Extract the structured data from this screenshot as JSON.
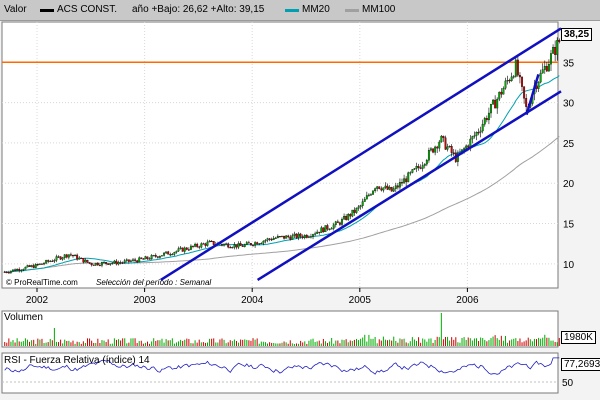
{
  "header": {
    "label": "Valor",
    "series_name": "ACS CONST.",
    "stats": "año +Bajo: 26,62 +Alto: 39,15",
    "ma20_label": "MM20",
    "ma100_label": "MM100"
  },
  "watermark": {
    "brand": "© ProRealTime.com",
    "period": "Selección del período : Semanal"
  },
  "panels": {
    "volume_title": "Volumen",
    "volume_value": "1980K",
    "rsi_title": "RSI - Fuerza Relativa (índice) 14",
    "rsi_value": "77,2693",
    "rsi_level": "50"
  },
  "colors": {
    "up": "#00aa00",
    "down": "#cc0000",
    "ma20": "#00a0b0",
    "ma100": "#a0a0a0",
    "trend": "#1010c0",
    "resistance": "#ff6a00",
    "panel_bg": "#ffffff"
  },
  "chart_data": [
    {
      "type": "candlestick",
      "x_ticks": [
        "2002",
        "2003",
        "2004",
        "2005",
        "2006"
      ],
      "y_ticks": [
        10,
        15,
        20,
        25,
        30,
        35
      ],
      "ylim": [
        7,
        40
      ],
      "last_value": "38,25",
      "resistance_level": 35,
      "grid": true,
      "series": [
        {
          "name": "ACS CONST.",
          "role": "price"
        },
        {
          "name": "MM20",
          "role": "ma20"
        },
        {
          "name": "MM100",
          "role": "ma100"
        }
      ],
      "trendlines": [
        {
          "from": [
            2003.15,
            8.0
          ],
          "to": [
            2006.87,
            39.2
          ]
        },
        {
          "from": [
            2004.05,
            8.0
          ],
          "to": [
            2006.87,
            31.4
          ]
        }
      ]
    },
    {
      "type": "bar",
      "title": "Volumen",
      "last_value": "1980K"
    },
    {
      "type": "line",
      "title": "RSI - Fuerza Relativa (índice) 14",
      "y_ticks": [
        50
      ],
      "ylim": [
        20,
        85
      ],
      "last_value": "77,2693"
    }
  ]
}
